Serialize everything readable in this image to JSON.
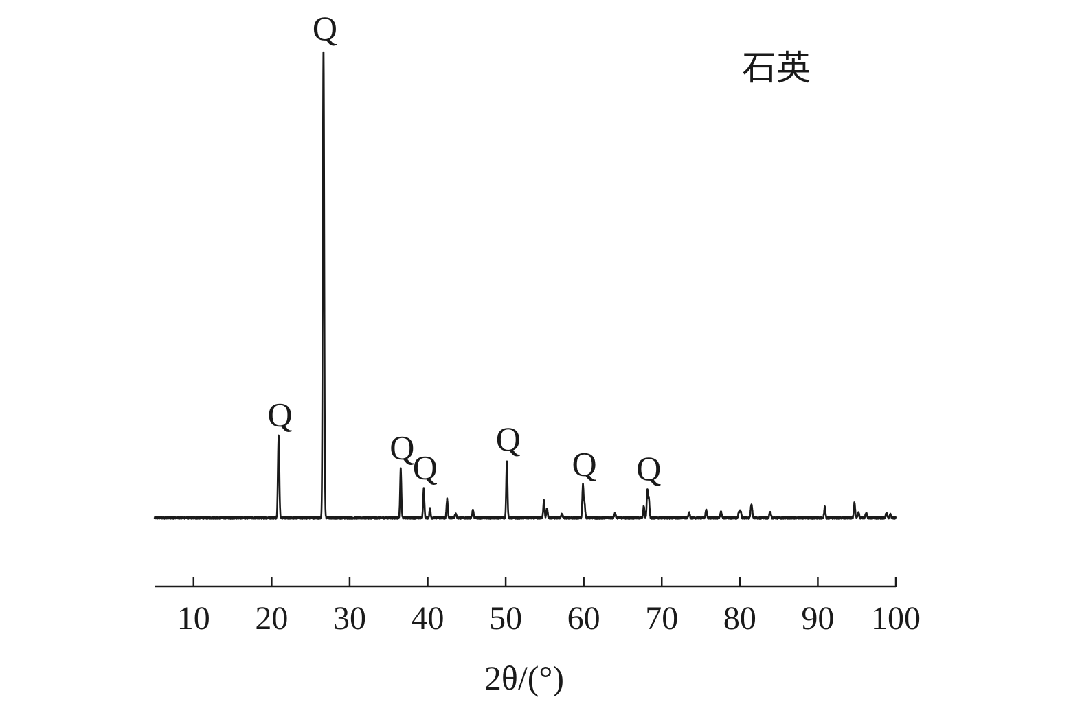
{
  "chart_data": {
    "type": "line",
    "title": "",
    "legend": {
      "text": "石英",
      "placement": "top-right"
    },
    "xlabel": "2θ/(°)",
    "ylabel": "",
    "xlim": [
      5,
      100
    ],
    "x_ticks": [
      10,
      20,
      30,
      40,
      50,
      60,
      70,
      80,
      90,
      100
    ],
    "x_tick_labels": [
      "10",
      "20",
      "30",
      "40",
      "50",
      "60",
      "70",
      "80",
      "90",
      "100"
    ],
    "y_axis_visible": false,
    "ylim": [
      0,
      100
    ],
    "grid": false,
    "series": [
      {
        "color": "#1a1a1a",
        "baseline": 0,
        "noise": 0.45,
        "peaks": [
          {
            "x": 20.9,
            "y": 17.5,
            "w": 0.09
          },
          {
            "x": 26.65,
            "y": 100,
            "w": 0.09
          },
          {
            "x": 36.55,
            "y": 10.5,
            "w": 0.08
          },
          {
            "x": 39.5,
            "y": 6.2,
            "w": 0.08
          },
          {
            "x": 40.3,
            "y": 2.0,
            "w": 0.08
          },
          {
            "x": 42.5,
            "y": 4.0,
            "w": 0.08
          },
          {
            "x": 43.6,
            "y": 0.8,
            "w": 0.1
          },
          {
            "x": 45.8,
            "y": 1.6,
            "w": 0.09
          },
          {
            "x": 50.15,
            "y": 12.3,
            "w": 0.08
          },
          {
            "x": 54.9,
            "y": 3.9,
            "w": 0.08
          },
          {
            "x": 55.3,
            "y": 2.0,
            "w": 0.08
          },
          {
            "x": 57.2,
            "y": 0.7,
            "w": 0.1
          },
          {
            "x": 59.9,
            "y": 7.0,
            "w": 0.08
          },
          {
            "x": 60.1,
            "y": 3.0,
            "w": 0.08
          },
          {
            "x": 64.0,
            "y": 0.9,
            "w": 0.1
          },
          {
            "x": 67.7,
            "y": 2.4,
            "w": 0.08
          },
          {
            "x": 68.15,
            "y": 6.0,
            "w": 0.08
          },
          {
            "x": 68.35,
            "y": 4.0,
            "w": 0.08
          },
          {
            "x": 73.5,
            "y": 1.1,
            "w": 0.09
          },
          {
            "x": 75.7,
            "y": 1.6,
            "w": 0.09
          },
          {
            "x": 77.6,
            "y": 1.3,
            "w": 0.09
          },
          {
            "x": 79.9,
            "y": 1.2,
            "w": 0.09
          },
          {
            "x": 80.1,
            "y": 1.4,
            "w": 0.09
          },
          {
            "x": 81.5,
            "y": 3.0,
            "w": 0.1
          },
          {
            "x": 83.9,
            "y": 1.4,
            "w": 0.09
          },
          {
            "x": 90.9,
            "y": 2.4,
            "w": 0.08
          },
          {
            "x": 94.7,
            "y": 3.3,
            "w": 0.08
          },
          {
            "x": 95.2,
            "y": 1.1,
            "w": 0.09
          },
          {
            "x": 96.2,
            "y": 1.0,
            "w": 0.09
          },
          {
            "x": 98.8,
            "y": 1.0,
            "w": 0.09
          },
          {
            "x": 99.3,
            "y": 0.7,
            "w": 0.09
          }
        ]
      }
    ],
    "annotations": [
      {
        "text": "Q",
        "x": 20.9,
        "y": 17.5
      },
      {
        "text": "Q",
        "x": 26.65,
        "y": 100
      },
      {
        "text": "Q",
        "x": 36.55,
        "y": 10.5
      },
      {
        "text": "Q",
        "x": 39.5,
        "y": 6.2
      },
      {
        "text": "Q",
        "x": 50.15,
        "y": 12.3
      },
      {
        "text": "Q",
        "x": 59.9,
        "y": 7.0
      },
      {
        "text": "Q",
        "x": 68.15,
        "y": 6.0
      }
    ]
  }
}
